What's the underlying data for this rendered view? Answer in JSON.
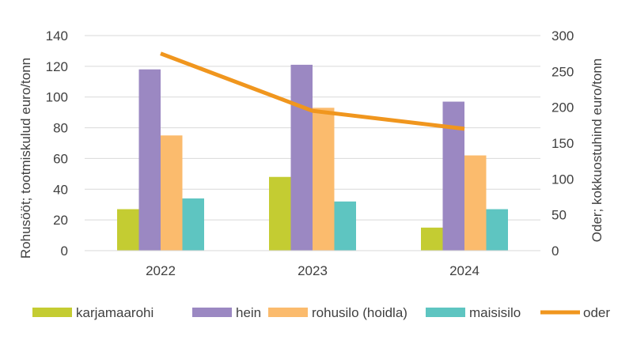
{
  "chart_data": {
    "type": "bar",
    "categories": [
      "2022",
      "2023",
      "2024"
    ],
    "series": [
      {
        "name": "karjamaarohi",
        "axis": "left",
        "kind": "bar",
        "color": "#c4cc32",
        "values": [
          27,
          48,
          15
        ]
      },
      {
        "name": "hein",
        "axis": "left",
        "kind": "bar",
        "color": "#9b88c2",
        "values": [
          118,
          121,
          97
        ]
      },
      {
        "name": "rohusilo (hoidla)",
        "axis": "left",
        "kind": "bar",
        "color": "#fbbb6d",
        "values": [
          75,
          93,
          62
        ]
      },
      {
        "name": "maisisilo",
        "axis": "left",
        "kind": "bar",
        "color": "#5ec5c1",
        "values": [
          34,
          32,
          27
        ]
      },
      {
        "name": "oder",
        "axis": "right",
        "kind": "line",
        "color": "#f0961e",
        "values": [
          275,
          195,
          170
        ]
      }
    ],
    "ylabel": "Rohusööt; tootmiskulud euro/tonn",
    "y2label": "Oder; kokkuostuhind euro/tonn",
    "ylim": [
      0,
      140
    ],
    "yticks": [
      0,
      20,
      40,
      60,
      80,
      100,
      120,
      140
    ],
    "y2lim": [
      0,
      300
    ],
    "y2ticks": [
      0,
      50,
      100,
      150,
      200,
      250,
      300
    ],
    "grid": true,
    "legend_position": "bottom"
  }
}
